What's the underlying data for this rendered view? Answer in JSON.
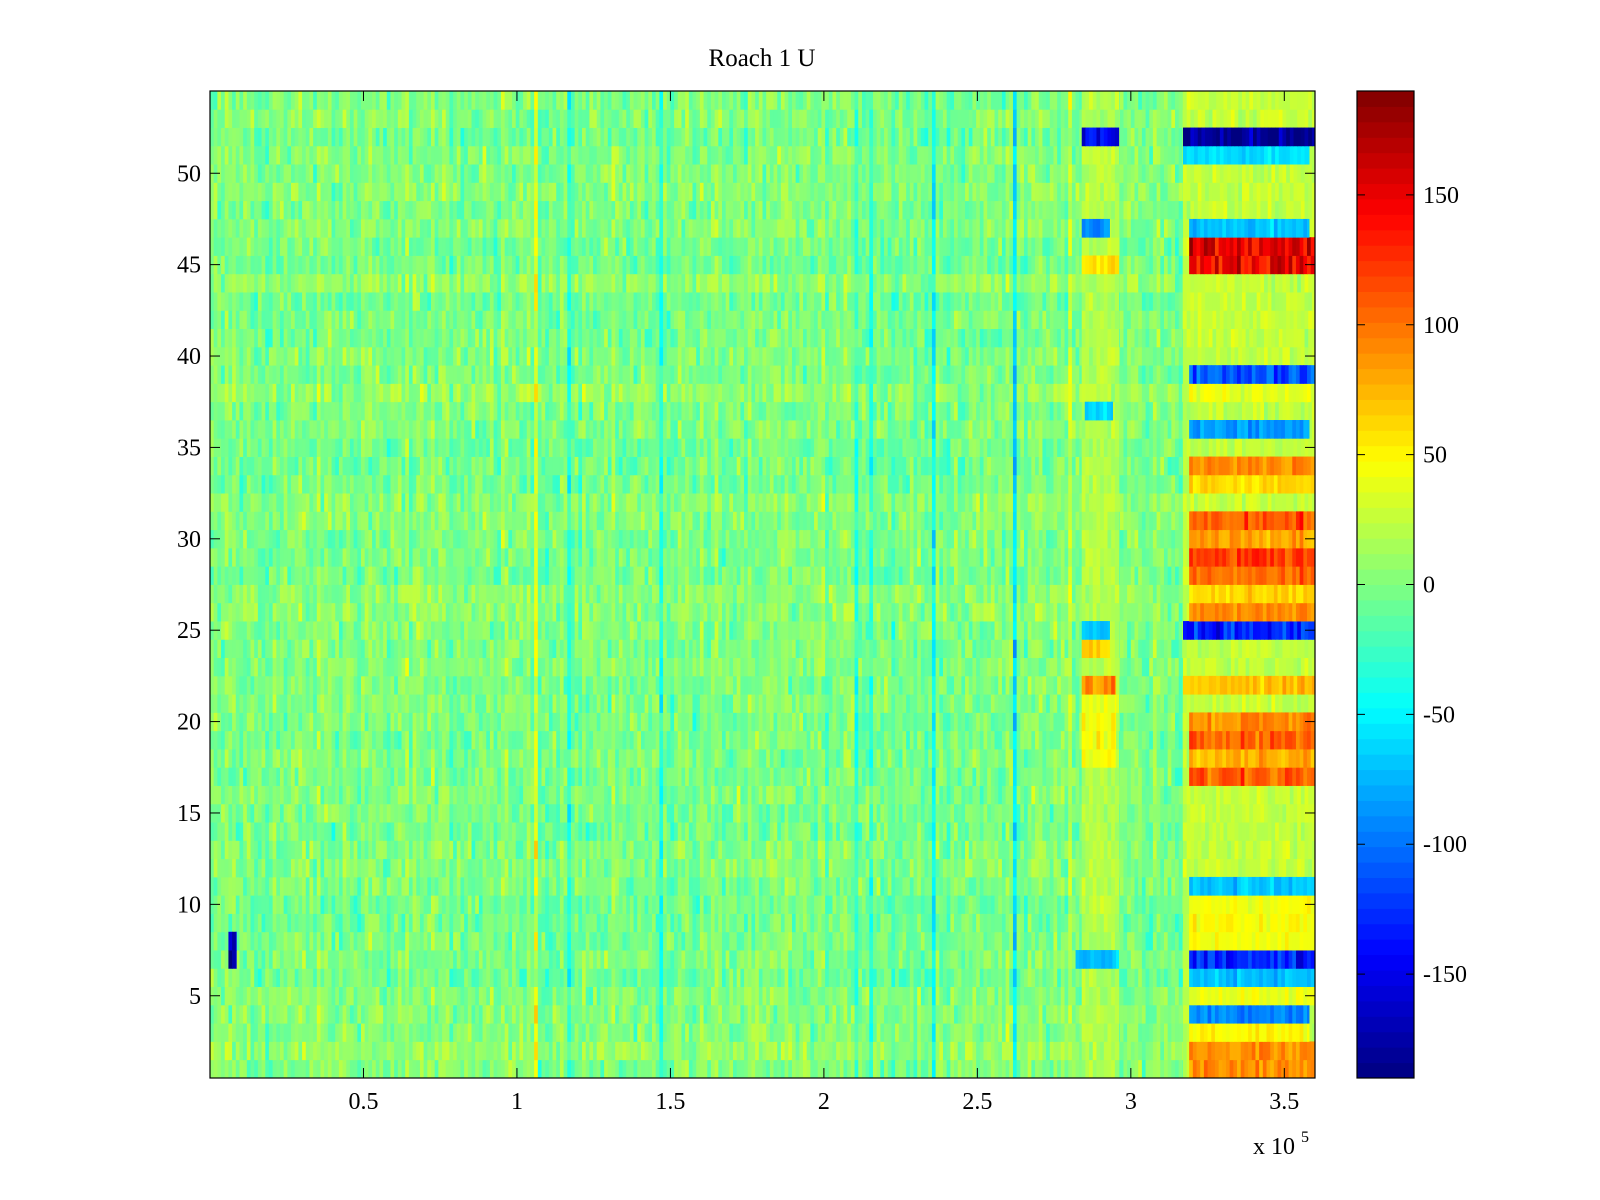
{
  "chart_data": {
    "type": "heatmap",
    "title": "Roach 1 U",
    "xlabel": "",
    "ylabel": "",
    "x_multiplier_label": "x 10",
    "x_multiplier_exponent": "5",
    "xlim": [
      0,
      360000
    ],
    "ylim": [
      0.5,
      54.5
    ],
    "rows": 54,
    "x_ticks": [
      {
        "value": 50000,
        "label": "0.5"
      },
      {
        "value": 100000,
        "label": "1"
      },
      {
        "value": 150000,
        "label": "1.5"
      },
      {
        "value": 200000,
        "label": "2"
      },
      {
        "value": 250000,
        "label": "2.5"
      },
      {
        "value": 300000,
        "label": "3"
      },
      {
        "value": 350000,
        "label": "3.5"
      }
    ],
    "y_ticks": [
      {
        "value": 5,
        "label": "5"
      },
      {
        "value": 10,
        "label": "10"
      },
      {
        "value": 15,
        "label": "15"
      },
      {
        "value": 20,
        "label": "20"
      },
      {
        "value": 25,
        "label": "25"
      },
      {
        "value": 30,
        "label": "30"
      },
      {
        "value": 35,
        "label": "35"
      },
      {
        "value": 40,
        "label": "40"
      },
      {
        "value": 45,
        "label": "45"
      },
      {
        "value": 50,
        "label": "50"
      }
    ],
    "colorbar": {
      "colormap": "jet",
      "clim": [
        -190,
        190
      ],
      "ticks": [
        {
          "value": -150,
          "label": "-150"
        },
        {
          "value": -100,
          "label": "-100"
        },
        {
          "value": -50,
          "label": "-50"
        },
        {
          "value": 0,
          "label": "0"
        },
        {
          "value": 50,
          "label": "50"
        },
        {
          "value": 100,
          "label": "100"
        },
        {
          "value": 150,
          "label": "150"
        }
      ]
    },
    "background_level": 0,
    "regions": [
      {
        "rows": [
          52,
          52
        ],
        "x": [
          284000,
          296000
        ],
        "value": -150
      },
      {
        "rows": [
          52,
          52
        ],
        "x": [
          317000,
          361000
        ],
        "value": -185
      },
      {
        "rows": [
          51,
          51
        ],
        "x": [
          317000,
          358000
        ],
        "value": -60
      },
      {
        "rows": [
          47,
          47
        ],
        "x": [
          284000,
          293000
        ],
        "value": -90
      },
      {
        "rows": [
          47,
          47
        ],
        "x": [
          319000,
          358000
        ],
        "value": -70
      },
      {
        "rows": [
          45,
          46
        ],
        "x": [
          319000,
          361000
        ],
        "value": 150
      },
      {
        "rows": [
          45,
          45
        ],
        "x": [
          284000,
          296000
        ],
        "value": 60
      },
      {
        "rows": [
          39,
          39
        ],
        "x": [
          319000,
          361000
        ],
        "value": -110
      },
      {
        "rows": [
          38,
          38
        ],
        "x": [
          319000,
          361000
        ],
        "value": 40
      },
      {
        "rows": [
          37,
          37
        ],
        "x": [
          285000,
          294000
        ],
        "value": -65
      },
      {
        "rows": [
          36,
          36
        ],
        "x": [
          319000,
          358000
        ],
        "value": -85
      },
      {
        "rows": [
          34,
          34
        ],
        "x": [
          319000,
          361000
        ],
        "value": 90
      },
      {
        "rows": [
          33,
          33
        ],
        "x": [
          319000,
          361000
        ],
        "value": 60
      },
      {
        "rows": [
          31,
          31
        ],
        "x": [
          319000,
          361000
        ],
        "value": 110
      },
      {
        "rows": [
          30,
          30
        ],
        "x": [
          319000,
          361000
        ],
        "value": 80
      },
      {
        "rows": [
          29,
          29
        ],
        "x": [
          319000,
          361000
        ],
        "value": 120
      },
      {
        "rows": [
          28,
          28
        ],
        "x": [
          319000,
          361000
        ],
        "value": 100
      },
      {
        "rows": [
          27,
          27
        ],
        "x": [
          319000,
          361000
        ],
        "value": 60
      },
      {
        "rows": [
          26,
          26
        ],
        "x": [
          319000,
          361000
        ],
        "value": 90
      },
      {
        "rows": [
          25,
          25
        ],
        "x": [
          317000,
          361000
        ],
        "value": -130
      },
      {
        "rows": [
          25,
          25
        ],
        "x": [
          284000,
          293000
        ],
        "value": -70
      },
      {
        "rows": [
          24,
          24
        ],
        "x": [
          284000,
          293000
        ],
        "value": 70
      },
      {
        "rows": [
          22,
          22
        ],
        "x": [
          284000,
          295000
        ],
        "value": 90
      },
      {
        "rows": [
          22,
          22
        ],
        "x": [
          317000,
          361000
        ],
        "value": 70
      },
      {
        "rows": [
          20,
          20
        ],
        "x": [
          319000,
          361000
        ],
        "value": 90
      },
      {
        "rows": [
          19,
          19
        ],
        "x": [
          319000,
          361000
        ],
        "value": 110
      },
      {
        "rows": [
          18,
          21
        ],
        "x": [
          284000,
          295000
        ],
        "value": 45
      },
      {
        "rows": [
          18,
          18
        ],
        "x": [
          319000,
          361000
        ],
        "value": 80
      },
      {
        "rows": [
          17,
          17
        ],
        "x": [
          319000,
          361000
        ],
        "value": 110
      },
      {
        "rows": [
          11,
          11
        ],
        "x": [
          319000,
          361000
        ],
        "value": -70
      },
      {
        "rows": [
          8,
          10
        ],
        "x": [
          319000,
          361000
        ],
        "value": 45
      },
      {
        "rows": [
          7,
          7
        ],
        "x": [
          282000,
          296000
        ],
        "value": -70
      },
      {
        "rows": [
          7,
          7
        ],
        "x": [
          319000,
          361000
        ],
        "value": -130
      },
      {
        "rows": [
          7,
          8
        ],
        "x": [
          6000,
          8500
        ],
        "value": -170
      },
      {
        "rows": [
          6,
          6
        ],
        "x": [
          319000,
          361000
        ],
        "value": -70
      },
      {
        "rows": [
          5,
          5
        ],
        "x": [
          319000,
          361000
        ],
        "value": 40
      },
      {
        "rows": [
          4,
          4
        ],
        "x": [
          319000,
          358000
        ],
        "value": -90
      },
      {
        "rows": [
          3,
          3
        ],
        "x": [
          319000,
          358000
        ],
        "value": 50
      },
      {
        "rows": [
          1,
          2
        ],
        "x": [
          319000,
          361000
        ],
        "value": 90
      },
      {
        "rows": [
          1,
          54
        ],
        "x": [
          284000,
          296000
        ],
        "value": 20
      },
      {
        "rows": [
          1,
          54
        ],
        "x": [
          317000,
          361000
        ],
        "value": 25
      }
    ]
  }
}
